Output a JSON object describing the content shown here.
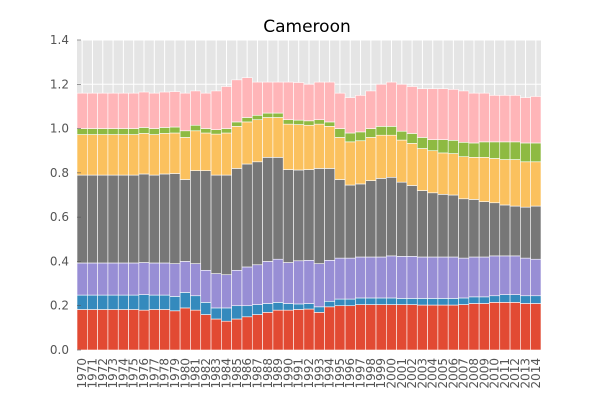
{
  "chart_data": {
    "type": "bar",
    "stacked": true,
    "title": "Cameroon",
    "xlabel": "",
    "ylabel": "",
    "ylim": [
      0,
      1.4
    ],
    "yticks": [
      "0.0",
      "0.2",
      "0.4",
      "0.6",
      "0.8",
      "1.0",
      "1.2",
      "1.4"
    ],
    "grid": true,
    "legend": "none",
    "categories": [
      "1970",
      "1971",
      "1972",
      "1973",
      "1974",
      "1975",
      "1976",
      "1977",
      "1978",
      "1979",
      "1980",
      "1981",
      "1982",
      "1983",
      "1984",
      "1985",
      "1986",
      "1987",
      "1988",
      "1989",
      "1990",
      "1991",
      "1992",
      "1993",
      "1994",
      "1995",
      "1996",
      "1997",
      "1998",
      "1999",
      "2000",
      "2001",
      "2002",
      "2003",
      "2004",
      "2005",
      "2006",
      "2007",
      "2008",
      "2009",
      "2010",
      "2011",
      "2012",
      "2013",
      "2014"
    ],
    "series": [
      {
        "color": "#e24a33",
        "values": [
          0.183,
          0.183,
          0.183,
          0.183,
          0.183,
          0.183,
          0.18,
          0.183,
          0.183,
          0.177,
          0.19,
          0.18,
          0.16,
          0.14,
          0.13,
          0.14,
          0.15,
          0.16,
          0.17,
          0.18,
          0.18,
          0.183,
          0.185,
          0.17,
          0.195,
          0.2,
          0.2,
          0.205,
          0.205,
          0.205,
          0.205,
          0.205,
          0.205,
          0.203,
          0.203,
          0.203,
          0.203,
          0.205,
          0.21,
          0.21,
          0.215,
          0.215,
          0.215,
          0.21,
          0.21
        ]
      },
      {
        "color": "#348abd",
        "values": [
          0.065,
          0.065,
          0.065,
          0.065,
          0.065,
          0.065,
          0.07,
          0.065,
          0.065,
          0.065,
          0.07,
          0.065,
          0.055,
          0.05,
          0.06,
          0.06,
          0.05,
          0.045,
          0.04,
          0.035,
          0.03,
          0.025,
          0.025,
          0.025,
          0.025,
          0.03,
          0.03,
          0.03,
          0.03,
          0.03,
          0.03,
          0.028,
          0.028,
          0.03,
          0.03,
          0.03,
          0.03,
          0.03,
          0.03,
          0.03,
          0.03,
          0.035,
          0.035,
          0.035,
          0.035
        ]
      },
      {
        "color": "#988ed5",
        "values": [
          0.145,
          0.145,
          0.145,
          0.145,
          0.145,
          0.145,
          0.145,
          0.145,
          0.145,
          0.148,
          0.14,
          0.145,
          0.145,
          0.155,
          0.15,
          0.16,
          0.175,
          0.18,
          0.19,
          0.195,
          0.185,
          0.195,
          0.195,
          0.195,
          0.185,
          0.185,
          0.185,
          0.185,
          0.185,
          0.185,
          0.19,
          0.19,
          0.19,
          0.187,
          0.187,
          0.187,
          0.187,
          0.18,
          0.18,
          0.18,
          0.18,
          0.175,
          0.175,
          0.17,
          0.165
        ]
      },
      {
        "color": "#777777",
        "values": [
          0.397,
          0.397,
          0.397,
          0.397,
          0.397,
          0.397,
          0.4,
          0.397,
          0.402,
          0.407,
          0.37,
          0.42,
          0.45,
          0.445,
          0.45,
          0.46,
          0.465,
          0.465,
          0.47,
          0.46,
          0.42,
          0.41,
          0.41,
          0.43,
          0.415,
          0.355,
          0.33,
          0.33,
          0.345,
          0.355,
          0.355,
          0.335,
          0.32,
          0.3,
          0.29,
          0.283,
          0.28,
          0.268,
          0.26,
          0.25,
          0.24,
          0.23,
          0.225,
          0.23,
          0.24
        ]
      },
      {
        "color": "#fbc15e",
        "values": [
          0.183,
          0.183,
          0.183,
          0.183,
          0.183,
          0.183,
          0.183,
          0.183,
          0.183,
          0.183,
          0.19,
          0.18,
          0.17,
          0.185,
          0.19,
          0.19,
          0.19,
          0.19,
          0.18,
          0.18,
          0.205,
          0.205,
          0.2,
          0.2,
          0.19,
          0.19,
          0.195,
          0.195,
          0.195,
          0.195,
          0.19,
          0.19,
          0.19,
          0.19,
          0.19,
          0.187,
          0.187,
          0.19,
          0.19,
          0.2,
          0.2,
          0.205,
          0.21,
          0.205,
          0.2
        ]
      },
      {
        "color": "#8eba42",
        "values": [
          0.027,
          0.027,
          0.027,
          0.027,
          0.027,
          0.027,
          0.027,
          0.027,
          0.027,
          0.027,
          0.03,
          0.025,
          0.02,
          0.02,
          0.02,
          0.02,
          0.02,
          0.02,
          0.02,
          0.02,
          0.02,
          0.02,
          0.02,
          0.02,
          0.02,
          0.04,
          0.04,
          0.04,
          0.04,
          0.04,
          0.04,
          0.04,
          0.045,
          0.05,
          0.05,
          0.06,
          0.06,
          0.065,
          0.065,
          0.07,
          0.075,
          0.08,
          0.08,
          0.085,
          0.085
        ]
      },
      {
        "color": "#ffb5b8",
        "values": [
          0.16,
          0.16,
          0.16,
          0.16,
          0.16,
          0.16,
          0.16,
          0.16,
          0.16,
          0.16,
          0.17,
          0.155,
          0.16,
          0.175,
          0.19,
          0.19,
          0.18,
          0.15,
          0.14,
          0.14,
          0.17,
          0.17,
          0.165,
          0.17,
          0.18,
          0.16,
          0.16,
          0.165,
          0.17,
          0.19,
          0.2,
          0.212,
          0.212,
          0.22,
          0.23,
          0.23,
          0.23,
          0.232,
          0.225,
          0.22,
          0.21,
          0.21,
          0.21,
          0.205,
          0.21
        ]
      }
    ]
  }
}
